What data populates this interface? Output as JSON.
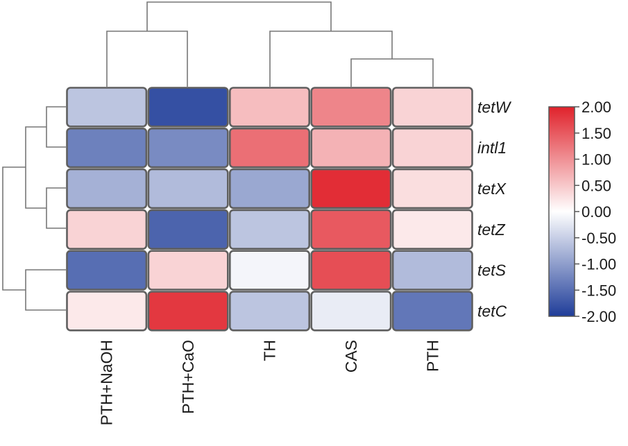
{
  "chart_data": {
    "type": "heatmap",
    "title": "",
    "rows": [
      "tetW",
      "intl1",
      "tetX",
      "tetZ",
      "tetS",
      "tetC"
    ],
    "columns": [
      "PTH+NaOH",
      "PTH+CaO",
      "TH",
      "CAS",
      "PTH"
    ],
    "values": [
      [
        -0.6,
        -1.8,
        0.6,
        1.1,
        0.4
      ],
      [
        -1.3,
        -1.2,
        1.3,
        0.7,
        0.4
      ],
      [
        -0.8,
        -0.7,
        -0.9,
        1.9,
        0.3
      ],
      [
        0.4,
        -1.6,
        -0.6,
        1.5,
        0.2
      ],
      [
        -1.5,
        0.4,
        -0.1,
        1.6,
        -0.7
      ],
      [
        0.2,
        1.8,
        -0.6,
        -0.2,
        -1.4
      ]
    ],
    "colorbar": {
      "min": -2.0,
      "max": 2.0,
      "ticks": [
        "2.00",
        "1.50",
        "1.00",
        "0.50",
        "0.00",
        "-0.50",
        "-1.00",
        "-1.50",
        "-2.00"
      ],
      "colors": {
        "low": "#1f3d99",
        "mid": "#ffffff",
        "high": "#e0222b"
      }
    },
    "column_dendrogram": "((PTH+NaOH,PTH+CaO),(TH,(CAS,PTH)))",
    "row_dendrogram": "(((tetW,intl1),(tetX,tetZ)),(tetS,tetC))"
  }
}
